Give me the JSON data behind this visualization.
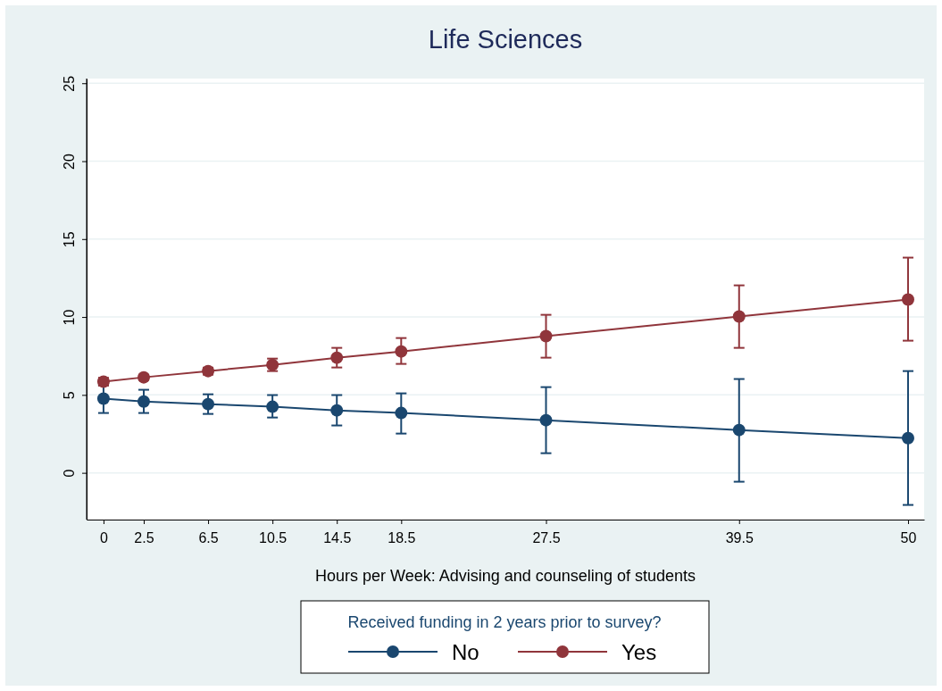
{
  "chart_data": {
    "type": "line",
    "title": "Life Sciences",
    "xlabel": "Hours per Week: Advising and counseling of students",
    "legend_title": "Received funding in 2 years prior to survey?",
    "x": [
      0,
      2.5,
      6.5,
      10.5,
      14.5,
      18.5,
      27.5,
      39.5,
      50
    ],
    "series": [
      {
        "name": "No",
        "color": "#1a476f",
        "values": [
          4.76,
          4.58,
          4.41,
          4.24,
          4.01,
          3.84,
          3.38,
          2.75,
          2.23
        ],
        "errors": [
          [
            3.84,
            5.62
          ],
          [
            3.84,
            5.33
          ],
          [
            3.78,
            5.04
          ],
          [
            3.55,
            4.99
          ],
          [
            3.04,
            4.99
          ],
          [
            2.52,
            5.1
          ],
          [
            1.26,
            5.5
          ],
          [
            -0.57,
            6.02
          ],
          [
            -2.06,
            6.53
          ]
        ]
      },
      {
        "name": "Yes",
        "color": "#90353b",
        "values": [
          5.85,
          6.13,
          6.53,
          6.93,
          7.39,
          7.79,
          8.77,
          10.03,
          11.12
        ],
        "errors": [
          [
            5.6,
            6.1
          ],
          [
            5.95,
            6.3
          ],
          [
            6.3,
            6.75
          ],
          [
            6.53,
            7.33
          ],
          [
            6.76,
            8.02
          ],
          [
            6.99,
            8.65
          ],
          [
            7.39,
            10.14
          ],
          [
            8.02,
            12.03
          ],
          [
            8.48,
            13.81
          ]
        ]
      }
    ],
    "xlim": [
      -1.05,
      51
    ],
    "xticks": [
      0,
      2.5,
      6.5,
      10.5,
      14.5,
      18.5,
      27.5,
      39.5,
      50
    ],
    "ylim": [
      -3,
      25.3
    ],
    "yticks": [
      0,
      5,
      10,
      15,
      20,
      25
    ],
    "grid": "y",
    "legend": "bottom",
    "marker": "circle",
    "line_style": "solid"
  }
}
